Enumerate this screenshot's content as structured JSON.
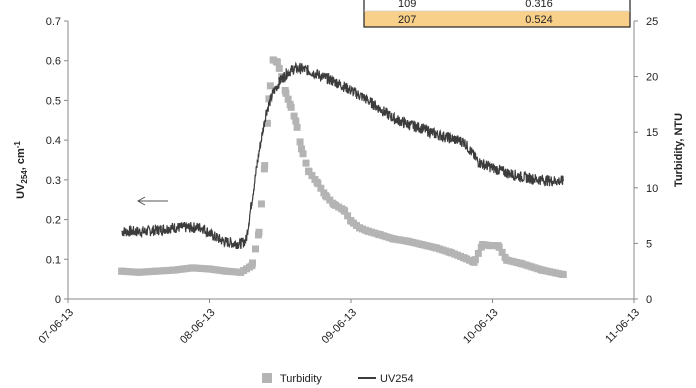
{
  "chart_data": {
    "type": "line",
    "x_tick_labels": [
      "07-06-13",
      "08-06-13",
      "09-06-13",
      "10-06-13",
      "11-06-13"
    ],
    "xlim": [
      "07-06-13",
      "11-06-13"
    ],
    "y_left": {
      "label_main": "UV",
      "label_sub": "254",
      "label_unit": ", cm",
      "label_sup": "-1",
      "ylim": [
        0,
        0.7
      ],
      "ticks": [
        "0",
        "0.1",
        "0.2",
        "0.3",
        "0.4",
        "0.5",
        "0.6",
        "0.7"
      ]
    },
    "y_right": {
      "label": "Turbidity, NTU",
      "ylim": [
        0,
        25
      ],
      "ticks": [
        "0",
        "5",
        "10",
        "15",
        "20",
        "25"
      ]
    },
    "grid": false,
    "legend_position": "bottom-center",
    "series": [
      {
        "name": "Turbidity",
        "axis": "right",
        "style": "square-markers",
        "color": "#b4b4b4",
        "points": [
          [
            0.38,
            2.5
          ],
          [
            0.5,
            2.4
          ],
          [
            0.62,
            2.5
          ],
          [
            0.75,
            2.6
          ],
          [
            0.88,
            2.8
          ],
          [
            1.0,
            2.7
          ],
          [
            1.12,
            2.5
          ],
          [
            1.22,
            2.4
          ],
          [
            1.3,
            3.0
          ],
          [
            1.35,
            6.0
          ],
          [
            1.39,
            12.0
          ],
          [
            1.42,
            18.0
          ],
          [
            1.45,
            21.5
          ],
          [
            1.48,
            21.3
          ],
          [
            1.51,
            20.0
          ],
          [
            1.54,
            18.5
          ],
          [
            1.57,
            17.5
          ],
          [
            1.61,
            16.0
          ],
          [
            1.65,
            13.5
          ],
          [
            1.7,
            11.5
          ],
          [
            1.76,
            10.5
          ],
          [
            1.82,
            9.3
          ],
          [
            1.88,
            8.5
          ],
          [
            1.95,
            8.0
          ],
          [
            2.0,
            7.0
          ],
          [
            2.06,
            6.4
          ],
          [
            2.12,
            6.1
          ],
          [
            2.2,
            5.8
          ],
          [
            2.3,
            5.4
          ],
          [
            2.4,
            5.2
          ],
          [
            2.5,
            4.9
          ],
          [
            2.6,
            4.6
          ],
          [
            2.7,
            4.2
          ],
          [
            2.8,
            3.7
          ],
          [
            2.87,
            3.3
          ],
          [
            2.93,
            4.9
          ],
          [
            2.98,
            4.8
          ],
          [
            3.04,
            4.8
          ],
          [
            3.1,
            3.5
          ],
          [
            3.2,
            3.2
          ],
          [
            3.35,
            2.6
          ],
          [
            3.5,
            2.2
          ]
        ]
      },
      {
        "name": "UV254",
        "axis": "left",
        "style": "noisy-line",
        "color": "#3c3c3c",
        "points": [
          [
            0.38,
            0.17
          ],
          [
            0.55,
            0.17
          ],
          [
            0.75,
            0.18
          ],
          [
            0.85,
            0.18
          ],
          [
            0.95,
            0.18
          ],
          [
            1.02,
            0.16
          ],
          [
            1.1,
            0.145
          ],
          [
            1.18,
            0.14
          ],
          [
            1.23,
            0.14
          ],
          [
            1.26,
            0.15
          ],
          [
            1.3,
            0.25
          ],
          [
            1.35,
            0.37
          ],
          [
            1.4,
            0.47
          ],
          [
            1.45,
            0.52
          ],
          [
            1.5,
            0.55
          ],
          [
            1.55,
            0.57
          ],
          [
            1.6,
            0.58
          ],
          [
            1.65,
            0.58
          ],
          [
            1.7,
            0.575
          ],
          [
            1.8,
            0.56
          ],
          [
            1.9,
            0.545
          ],
          [
            2.0,
            0.525
          ],
          [
            2.1,
            0.505
          ],
          [
            2.2,
            0.48
          ],
          [
            2.3,
            0.455
          ],
          [
            2.4,
            0.44
          ],
          [
            2.5,
            0.43
          ],
          [
            2.6,
            0.415
          ],
          [
            2.7,
            0.405
          ],
          [
            2.8,
            0.395
          ],
          [
            2.85,
            0.37
          ],
          [
            2.9,
            0.345
          ],
          [
            3.0,
            0.33
          ],
          [
            3.1,
            0.318
          ],
          [
            3.2,
            0.308
          ],
          [
            3.3,
            0.302
          ],
          [
            3.4,
            0.298
          ],
          [
            3.5,
            0.297
          ]
        ]
      }
    ],
    "annotations": [
      {
        "type": "arrow",
        "text": "",
        "points_to": "left axis"
      }
    ],
    "inset_table": {
      "rows": [
        [
          "109",
          "0.316"
        ],
        [
          "207",
          "0.524"
        ]
      ],
      "highlight_row": 1,
      "highlight_color": "#f9d08a"
    }
  },
  "legend": {
    "turbidity_label": "Turbidity",
    "uv_label": "UV254"
  }
}
